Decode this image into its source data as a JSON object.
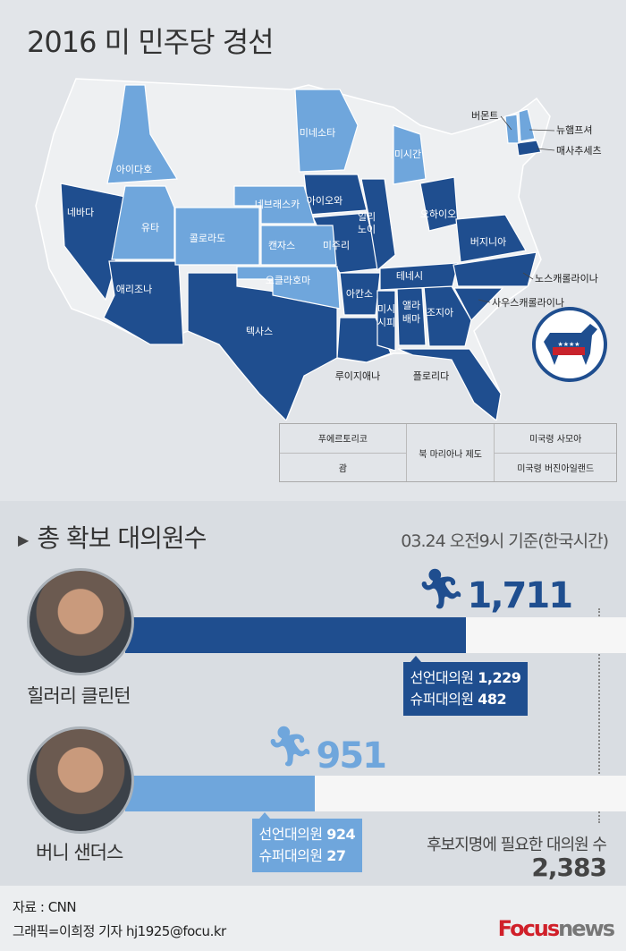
{
  "title": "2016 미 민주당 경선",
  "colors": {
    "clinton_won": "#1f4e8f",
    "sanders_won": "#6fa6dc",
    "not_yet": "#eef0f2",
    "background": "#e2e5e9"
  },
  "map": {
    "states_clinton": [
      "네바다",
      "애리조나",
      "텍사스",
      "아이오와",
      "일리노이",
      "미주리",
      "아칸소",
      "루이지애나",
      "미시시피",
      "앨라배마",
      "조지아",
      "플로리다",
      "테네시",
      "오하이오",
      "버지니아",
      "노스캐롤라이나",
      "사우스캐롤라이나",
      "매사추세츠"
    ],
    "states_sanders": [
      "아이다호",
      "유타",
      "콜로라도",
      "네브래스카",
      "캔자스",
      "오클라호마",
      "미네소타",
      "미시간",
      "버몬트",
      "뉴햄프셔"
    ],
    "labels": {
      "nevada": "네바다",
      "idaho": "아이다호",
      "utah": "유타",
      "arizona": "애리조나",
      "colorado": "콜로라도",
      "nebraska": "네브래스카",
      "kansas": "캔자스",
      "oklahoma": "오클라호마",
      "texas": "텍사스",
      "minnesota": "미네소타",
      "iowa": "아이오와",
      "missouri": "미주리",
      "illinois_1": "일리",
      "illinois_2": "노이",
      "arkansas": "아칸소",
      "louisiana": "루이지애나",
      "mississippi_1": "미시",
      "mississippi_2": "시피",
      "alabama_1": "앨라",
      "alabama_2": "배마",
      "georgia": "조지아",
      "florida": "플로리다",
      "tennessee": "테네시",
      "ohio": "오하이오",
      "virginia": "버지니아",
      "north_carolina": "노스캐롤라이나",
      "south_carolina": "사우스캐롤라이나",
      "michigan": "미시간",
      "vermont": "버몬트",
      "new_hampshire": "뉴햄프셔",
      "massachusetts": "매사추세츠"
    },
    "territories": [
      "푸에르토리코",
      "괌",
      "북 마리아나 제도",
      "미국령 사모아",
      "미국령 버진아일랜드"
    ],
    "logo_icon": "democratic-donkey-icon"
  },
  "delegates": {
    "section_title": "총 확보 대의원수",
    "basis": "03.24 오전9시 기준(한국시간)",
    "needed_label": "후보지명에 필요한 대의원 수",
    "needed_value": "2,383",
    "candidates": [
      {
        "name": "힐러리 클린턴",
        "total": "1,711",
        "pledged_label": "선언대의원",
        "pledged": "1,229",
        "super_label": "슈퍼대의원",
        "super": "482",
        "color": "#1f4e8f"
      },
      {
        "name": "버니 샌더스",
        "total": "951",
        "pledged_label": "선언대의원",
        "pledged": "924",
        "super_label": "슈퍼대의원",
        "super": "27",
        "color": "#6fa6dc"
      }
    ]
  },
  "chart_data": {
    "type": "bar",
    "title": "총 확보 대의원수",
    "categories": [
      "힐러리 클린턴",
      "버니 샌더스"
    ],
    "values": [
      1711,
      951
    ],
    "series": [
      {
        "name": "선언대의원",
        "values": [
          1229,
          924
        ]
      },
      {
        "name": "슈퍼대의원",
        "values": [
          482,
          27
        ]
      }
    ],
    "xlim": [
      0,
      2383
    ],
    "reference_line": 2383
  },
  "footer": {
    "source": "자료 : CNN",
    "credit": "그래픽=이희정 기자 hj1925@focu.kr",
    "logo_focus": "Focus",
    "logo_news": "news"
  }
}
